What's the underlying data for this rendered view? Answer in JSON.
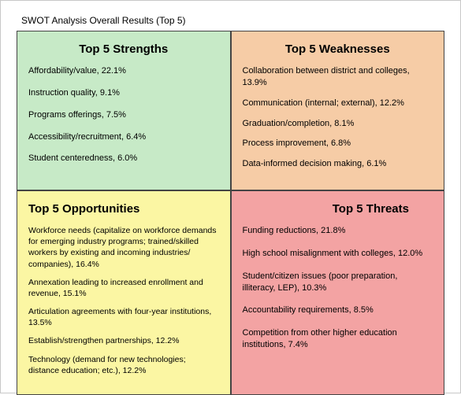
{
  "title": "SWOT Analysis Overall Results (Top 5)",
  "colors": {
    "strengths_bg": "#c7eac7",
    "weaknesses_bg": "#f6cca6",
    "opportunities_bg": "#fbf6a3",
    "threats_bg": "#f3a3a3",
    "border": "#444444",
    "outer_border": "#c8c8c8",
    "text": "#000000"
  },
  "quadrants": {
    "strengths": {
      "title": "Top 5 Strengths",
      "items": [
        "Affordability/value, 22.1%",
        "Instruction quality, 9.1%",
        "Programs offerings, 7.5%",
        "Accessibility/recruitment, 6.4%",
        "Student centeredness, 6.0%"
      ]
    },
    "weaknesses": {
      "title": "Top 5 Weaknesses",
      "items": [
        "Collaboration between district and colleges, 13.9%",
        "Communication (internal; external), 12.2%",
        "Graduation/completion, 8.1%",
        "Process improvement, 6.8%",
        "Data-informed decision making, 6.1%"
      ]
    },
    "opportunities": {
      "title": "Top 5 Opportunities",
      "items": [
        "Workforce needs (capitalize on workforce demands for emerging industry programs; trained/skilled workers by existing and incoming industries/ companies), 16.4%",
        "Annexation leading to increased enrollment and revenue, 15.1%",
        "Articulation agreements with four-year institutions, 13.5%",
        "Establish/strengthen partnerships, 12.2%",
        "Technology (demand for new technologies; distance education; etc.), 12.2%"
      ]
    },
    "threats": {
      "title": "Top 5 Threats",
      "items": [
        "Funding reductions, 21.8%",
        "High school misalignment with colleges, 12.0%",
        "Student/citizen issues (poor preparation, illiteracy, LEP), 10.3%",
        "Accountability requirements, 8.5%",
        "Competition from other higher education institutions, 7.4%"
      ]
    }
  }
}
